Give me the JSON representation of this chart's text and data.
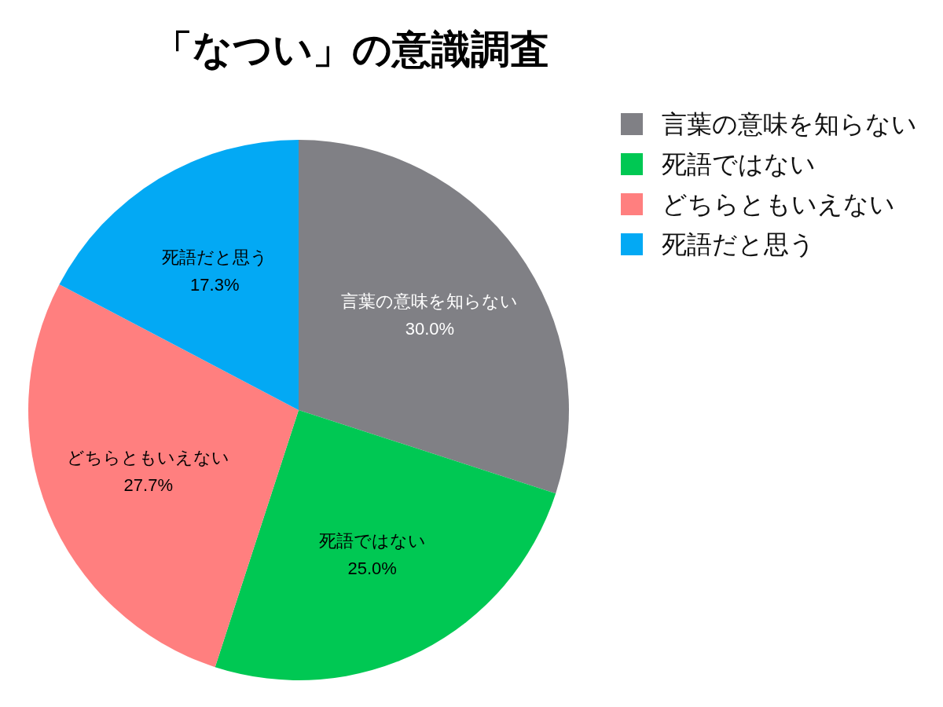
{
  "chart_data": {
    "type": "pie",
    "title": "「なつい」の意識調査",
    "categories": [
      "言葉の意味を知らない",
      "死語ではない",
      "どちらともいえない",
      "死語だと思う"
    ],
    "values": [
      30.0,
      25.0,
      27.7,
      17.3
    ],
    "colors": [
      "#808085",
      "#00c853",
      "#ff7f7f",
      "#03a9f4"
    ],
    "value_labels": [
      "30.0%",
      "25.0%",
      "27.7%",
      "17.3%"
    ],
    "legend": "top right"
  }
}
